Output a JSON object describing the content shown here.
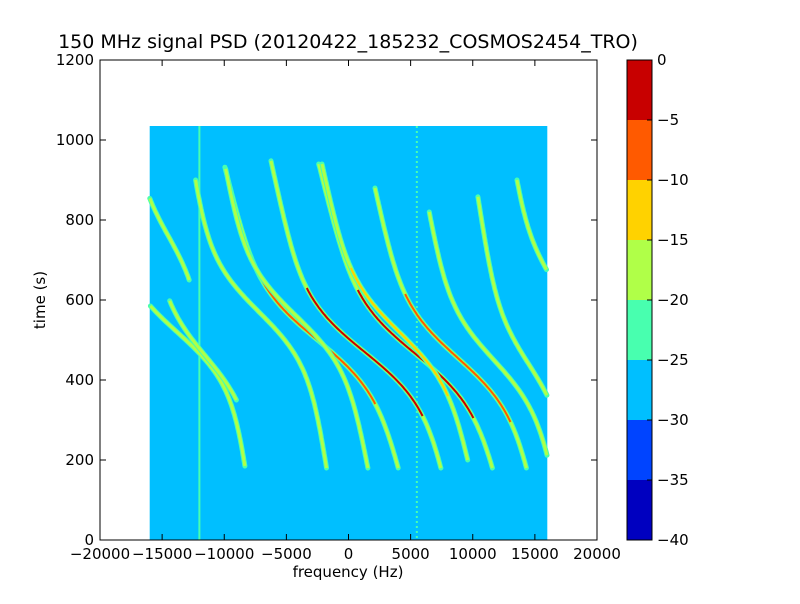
{
  "chart_data": {
    "type": "heatmap",
    "title": "150 MHz signal PSD (20120422_185232_COSMOS2454_TRO)",
    "xlabel": "frequency (Hz)",
    "ylabel": "time (s)",
    "xlim": [
      -20000,
      20000
    ],
    "ylim": [
      0,
      1200
    ],
    "x_ticks": [
      -20000,
      -15000,
      -10000,
      -5000,
      0,
      5000,
      10000,
      15000,
      20000
    ],
    "x_tick_labels": [
      "−20000",
      "−15000",
      "−10000",
      "−5000",
      "0",
      "5000",
      "10000",
      "15000",
      "20000"
    ],
    "y_ticks": [
      0,
      200,
      400,
      600,
      800,
      1000,
      1200
    ],
    "y_tick_labels": [
      "0",
      "200",
      "400",
      "600",
      "800",
      "1000",
      "1200"
    ],
    "grid": false,
    "data_extent": {
      "freq_range_hz": [
        -16000,
        16000
      ],
      "time_range_s": [
        0,
        1035
      ]
    },
    "background_level_db": -27.5,
    "colorbar": {
      "levels": [
        -40,
        -35,
        -30,
        -25,
        -20,
        -15,
        -10,
        -5,
        0
      ],
      "tick_labels": [
        "−40",
        "−35",
        "−30",
        "−25",
        "−20",
        "−15",
        "−10",
        "−5",
        "0"
      ],
      "colors": [
        "#0000c0",
        "#0044ff",
        "#00bfff",
        "#48ffaf",
        "#b0ff48",
        "#ffd200",
        "#ff5a00",
        "#c80000"
      ]
    },
    "vertical_lines_hz": [
      -12000,
      5500
    ],
    "traces": [
      {
        "center_hz": 1300,
        "turn_s": 470,
        "slope_hz_per_s": -7,
        "amp_hz": 4200,
        "t_range_s": [
          180,
          950
        ],
        "peak_db": -2
      },
      {
        "center_hz": 5400,
        "turn_s": 465,
        "slope_hz_per_s": -8,
        "amp_hz": 4000,
        "t_range_s": [
          180,
          940
        ],
        "peak_db": -2
      },
      {
        "center_hz": -2500,
        "turn_s": 500,
        "slope_hz_per_s": -8,
        "amp_hz": 4000,
        "t_range_s": [
          180,
          935
        ],
        "peak_db": -6
      },
      {
        "center_hz": 8800,
        "turn_s": 455,
        "slope_hz_per_s": -7,
        "amp_hz": 3700,
        "t_range_s": [
          180,
          880
        ],
        "peak_db": -8
      },
      {
        "center_hz": 4100,
        "turn_s": 520,
        "slope_hz_per_s": -7,
        "amp_hz": 3300,
        "t_range_s": [
          200,
          940
        ],
        "peak_db": -12
      },
      {
        "center_hz": -4200,
        "turn_s": 560,
        "slope_hz_per_s": -6,
        "amp_hz": 3500,
        "t_range_s": [
          180,
          930
        ],
        "peak_db": -16
      },
      {
        "center_hz": 11700,
        "turn_s": 450,
        "slope_hz_per_s": -6,
        "amp_hz": 3000,
        "t_range_s": [
          180,
          820
        ],
        "peak_db": -18
      },
      {
        "center_hz": -13800,
        "turn_s": 520,
        "slope_hz_per_s": -4.5,
        "amp_hz": 4000,
        "t_range_s": [
          185,
          860
        ],
        "peak_db": -17
      },
      {
        "center_hz": -11500,
        "turn_s": 460,
        "slope_hz_per_s": -5,
        "amp_hz": 2800,
        "t_range_s": [
          350,
          600
        ],
        "peak_db": -18
      },
      {
        "center_hz": -7200,
        "turn_s": 570,
        "slope_hz_per_s": -5,
        "amp_hz": 3500,
        "t_range_s": [
          180,
          900
        ],
        "peak_db": -20
      },
      {
        "center_hz": 14500,
        "turn_s": 440,
        "slope_hz_per_s": -5,
        "amp_hz": 2000,
        "t_range_s": [
          250,
          860
        ],
        "peak_db": -20
      },
      {
        "center_hz": 16600,
        "turn_s": 640,
        "slope_hz_per_s": -5,
        "amp_hz": 1800,
        "t_range_s": [
          580,
          900
        ],
        "peak_db": -20
      },
      {
        "center_hz": -14500,
        "turn_s": 760,
        "slope_hz_per_s": -4,
        "amp_hz": 1800,
        "t_range_s": [
          650,
          860
        ],
        "peak_db": -20
      }
    ]
  }
}
